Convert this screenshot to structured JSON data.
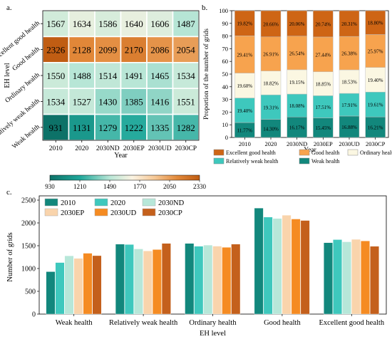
{
  "chart_data": [
    {
      "panel": "a.",
      "type": "heatmap",
      "xlabel": "Year",
      "ylabel": "EH level",
      "x": [
        "2010",
        "2020",
        "2030ND",
        "2030EP",
        "2030UD",
        "2030CP"
      ],
      "y": [
        "Excellent good health",
        "Good health",
        "Ordinary health",
        "Relatively weak health",
        "Weak health"
      ],
      "values": [
        [
          1567,
          1634,
          1586,
          1640,
          1606,
          1487
        ],
        [
          2326,
          2128,
          2099,
          2170,
          2086,
          2054
        ],
        [
          1550,
          1488,
          1514,
          1491,
          1465,
          1534
        ],
        [
          1534,
          1527,
          1430,
          1385,
          1416,
          1551
        ],
        [
          931,
          1131,
          1279,
          1222,
          1335,
          1282
        ]
      ],
      "colorbar": {
        "ticks": [
          "930",
          "1210",
          "1490",
          "1770",
          "2050",
          "2330"
        ],
        "min": 930,
        "max": 2330
      }
    },
    {
      "panel": "b.",
      "type": "bar",
      "stacked": true,
      "xlabel": "Year",
      "ylabel": "Proportion of the number of grids",
      "categories": [
        "2010",
        "2020",
        "2030ND",
        "2030EP",
        "2030UD",
        "2030CP"
      ],
      "yticks": [
        "0",
        "10",
        "20",
        "30",
        "40",
        "50",
        "60",
        "70",
        "80",
        "90",
        "100"
      ],
      "ylim": [
        0,
        100
      ],
      "series": [
        {
          "name": "Weak health",
          "values": [
            11.77,
            14.3,
            16.17,
            15.45,
            16.88,
            16.21
          ],
          "labels": [
            "11.77%",
            "14.30%",
            "16.17%",
            "15.45%",
            "16.88%",
            "16.21%"
          ]
        },
        {
          "name": "Relatively weak health",
          "values": [
            19.4,
            19.31,
            18.08,
            17.51,
            17.91,
            19.61
          ],
          "labels": [
            "19.40%",
            "19.31%",
            "18.08%",
            "17.51%",
            "17.91%",
            "19.61%"
          ]
        },
        {
          "name": "Ordinary health",
          "values": [
            19.6,
            18.82,
            19.15,
            18.85,
            18.53,
            19.4
          ],
          "labels": [
            "19.60%",
            "18.82%",
            "19.15%",
            "18.85%",
            "18.53%",
            "19.40%"
          ]
        },
        {
          "name": "Good health",
          "values": [
            29.41,
            26.91,
            26.54,
            27.44,
            26.38,
            25.97
          ],
          "labels": [
            "29.41%",
            "26.91%",
            "26.54%",
            "27.44%",
            "26.38%",
            "25.97%"
          ]
        },
        {
          "name": "Excellent good health",
          "values": [
            19.82,
            20.66,
            20.06,
            20.74,
            20.31,
            18.8
          ],
          "labels": [
            "19.82%",
            "20.66%",
            "20.06%",
            "20.74%",
            "20.31%",
            "18.80%"
          ]
        }
      ],
      "legend_order": [
        "Excellent good health",
        "Good health",
        "Ordinary health",
        "Relatively weak health",
        "Weak health"
      ],
      "legend_placement": "bottom",
      "colors": {
        "Weak health": "#12877c",
        "Relatively weak health": "#3ec8bd",
        "Ordinary health": "#fbf7e2",
        "Good health": "#f7a34e",
        "Excellent good health": "#ce6515"
      }
    },
    {
      "panel": "c.",
      "type": "bar",
      "xlabel": "EH level",
      "ylabel": "Number of grids",
      "categories": [
        "Weak health",
        "Relatively weak health",
        "Ordinary health",
        "Good health",
        "Excellent good health"
      ],
      "yticks": [
        "0",
        "500",
        "1000",
        "1500",
        "2000",
        "2500"
      ],
      "ylim": [
        0,
        2500
      ],
      "series": [
        {
          "name": "2010",
          "values": [
            931,
            1534,
            1550,
            2326,
            1567
          ]
        },
        {
          "name": "2020",
          "values": [
            1131,
            1527,
            1488,
            2128,
            1634
          ]
        },
        {
          "name": "2030ND",
          "values": [
            1279,
            1430,
            1514,
            2099,
            1586
          ]
        },
        {
          "name": "2030EP",
          "values": [
            1222,
            1385,
            1491,
            2170,
            1640
          ]
        },
        {
          "name": "2030UD",
          "values": [
            1335,
            1416,
            1465,
            2086,
            1606
          ]
        },
        {
          "name": "2030CP",
          "values": [
            1282,
            1551,
            1534,
            2054,
            1487
          ]
        }
      ],
      "colors": {
        "2010": "#12877c",
        "2020": "#3ec8bd",
        "2030ND": "#b7e7d9",
        "2030EP": "#f9d4ac",
        "2030UD": "#f58b22",
        "2030CP": "#c4601c"
      },
      "legend_placement": "top-left",
      "grid": false
    }
  ]
}
